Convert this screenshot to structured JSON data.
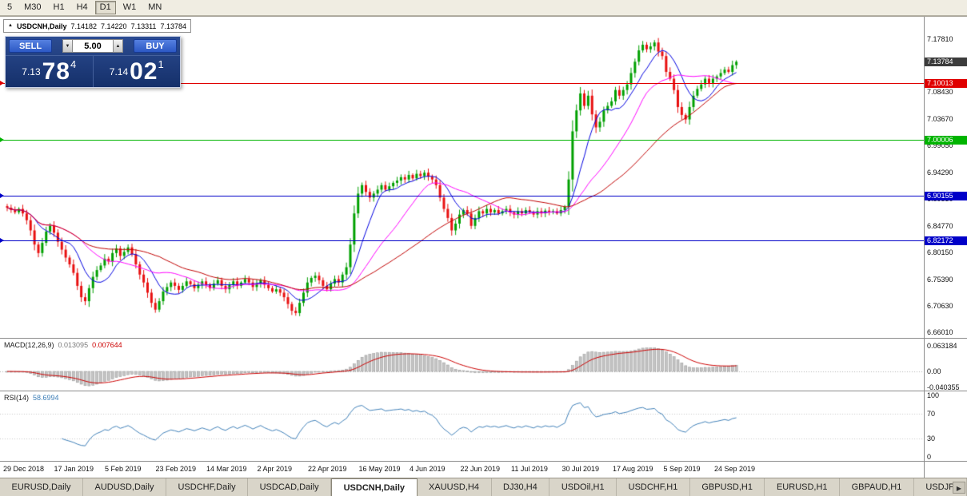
{
  "toolbar": {
    "timeframes": [
      "5",
      "M30",
      "H1",
      "H4",
      "D1",
      "W1",
      "MN"
    ],
    "active": "D1"
  },
  "icons": {
    "title_arrow": "▲",
    "spinner_up": "▲",
    "spinner_down": "▼",
    "tab_scroll_right": "▶"
  },
  "chart": {
    "symbol_period": "USDCNH,Daily",
    "ohlc": {
      "open": "7.14182",
      "high": "7.14220",
      "low": "7.13311",
      "close": "7.13784"
    },
    "trade_panel": {
      "sell_label": "SELL",
      "buy_label": "BUY",
      "volume": "5.00",
      "sell_price": {
        "main": "7.13",
        "big": "78",
        "sup": "4"
      },
      "buy_price": {
        "main": "7.14",
        "big": "02",
        "sup": "1"
      }
    },
    "price_axis": {
      "labels": [
        "7.17810",
        "7.08430",
        "7.03670",
        "6.99050",
        "6.94290",
        "6.89530",
        "6.84770",
        "6.80150",
        "6.75390",
        "6.70630",
        "6.66010"
      ],
      "tags": [
        {
          "text": "7.13784",
          "color": "#3c3c3c"
        },
        {
          "text": "7.10013",
          "color": "#e00000"
        },
        {
          "text": "7.00006",
          "color": "#00b400"
        },
        {
          "text": "6.90155",
          "color": "#0000c8"
        },
        {
          "text": "6.82172",
          "color": "#0000c8"
        }
      ]
    },
    "hlines": [
      {
        "price": 7.10013,
        "color": "#e00000"
      },
      {
        "price": 7.00006,
        "color": "#00b400"
      },
      {
        "price": 6.90155,
        "color": "#0000c8"
      },
      {
        "price": 6.82172,
        "color": "#0000c8"
      }
    ],
    "dates": [
      "29 Dec 2018",
      "17 Jan 2019",
      "5 Feb 2019",
      "23 Feb 2019",
      "14 Mar 2019",
      "2 Apr 2019",
      "22 Apr 2019",
      "16 May 2019",
      "4 Jun 2019",
      "22 Jun 2019",
      "11 Jul 2019",
      "30 Jul 2019",
      "17 Aug 2019",
      "5 Sep 2019",
      "24 Sep 2019"
    ]
  },
  "indicators": {
    "macd": {
      "label": "MACD(12,26,9)",
      "value_main": "0.013095",
      "value_signal": "0.007644",
      "axis": [
        "0.063184",
        "0.00",
        "-0.040355"
      ]
    },
    "rsi": {
      "label": "RSI(14)",
      "value": "58.6994",
      "axis": [
        "100",
        "70",
        "30",
        "0"
      ]
    }
  },
  "tabs": {
    "items": [
      "EURUSD,Daily",
      "AUDUSD,Daily",
      "USDCHF,Daily",
      "USDCAD,Daily",
      "USDCNH,Daily",
      "XAUUSD,H4",
      "DJ30,H4",
      "USDOil,H1",
      "USDCHF,H1",
      "GBPUSD,H1",
      "EURUSD,H1",
      "GBPAUD,H1",
      "USDJP"
    ],
    "active": "USDCNH,Daily"
  },
  "chart_data": {
    "type": "candlestick",
    "symbol": "USDCNH",
    "period": "Daily",
    "title": "USDCNH,Daily",
    "x_labels": [
      "29 Dec 2018",
      "17 Jan 2019",
      "5 Feb 2019",
      "23 Feb 2019",
      "14 Mar 2019",
      "2 Apr 2019",
      "22 Apr 2019",
      "16 May 2019",
      "4 Jun 2019",
      "22 Jun 2019",
      "11 Jul 2019",
      "30 Jul 2019",
      "17 Aug 2019",
      "5 Sep 2019",
      "24 Sep 2019"
    ],
    "closes": [
      6.88,
      6.876,
      6.872,
      6.878,
      6.87,
      6.858,
      6.84,
      6.815,
      6.8,
      6.818,
      6.838,
      6.848,
      6.836,
      6.82,
      6.806,
      6.792,
      6.78,
      6.765,
      6.742,
      6.722,
      6.715,
      6.738,
      6.758,
      6.77,
      6.778,
      6.79,
      6.785,
      6.8,
      6.808,
      6.795,
      6.802,
      6.81,
      6.798,
      6.78,
      6.762,
      6.748,
      6.73,
      6.712,
      6.7,
      6.715,
      6.732,
      6.74,
      6.748,
      6.742,
      6.735,
      6.742,
      6.75,
      6.745,
      6.738,
      6.744,
      6.75,
      6.744,
      6.738,
      6.746,
      6.752,
      6.742,
      6.736,
      6.744,
      6.75,
      6.742,
      6.748,
      6.754,
      6.748,
      6.74,
      6.746,
      6.752,
      6.744,
      6.738,
      6.732,
      6.736,
      6.73,
      6.722,
      6.71,
      6.698,
      6.694,
      6.712,
      6.73,
      6.748,
      6.756,
      6.76,
      6.752,
      6.742,
      6.736,
      6.746,
      6.754,
      6.748,
      6.762,
      6.775,
      6.815,
      6.87,
      6.905,
      6.92,
      6.908,
      6.898,
      6.905,
      6.912,
      6.92,
      6.912,
      6.918,
      6.924,
      6.928,
      6.934,
      6.93,
      6.938,
      6.932,
      6.94,
      6.936,
      6.942,
      6.935,
      6.93,
      6.92,
      6.898,
      6.878,
      6.862,
      6.84,
      6.852,
      6.868,
      6.876,
      6.87,
      6.848,
      6.862,
      6.874,
      6.87,
      6.878,
      6.872,
      6.876,
      6.87,
      6.874,
      6.878,
      6.872,
      6.868,
      6.874,
      6.87,
      6.876,
      6.872,
      6.868,
      6.874,
      6.87,
      6.875,
      6.872,
      6.874,
      6.87,
      6.876,
      6.882,
      6.93,
      7.015,
      7.052,
      7.082,
      7.06,
      7.078,
      7.045,
      7.022,
      7.032,
      7.052,
      7.06,
      7.068,
      7.088,
      7.078,
      7.088,
      7.098,
      7.118,
      7.138,
      7.158,
      7.168,
      7.16,
      7.165,
      7.172,
      7.156,
      7.148,
      7.12,
      7.108,
      7.088,
      7.058,
      7.044,
      7.036,
      7.058,
      7.078,
      7.09,
      7.098,
      7.108,
      7.1,
      7.108,
      7.112,
      7.118,
      7.124,
      7.12,
      7.132,
      7.138
    ],
    "price_range": {
      "top": 7.2174,
      "bottom": 6.6502
    },
    "current_price": 7.13784,
    "horizontal_levels": [
      7.10013,
      7.00006,
      6.90155,
      6.82172
    ],
    "moving_averages": [
      {
        "period": 8,
        "color": "#0000e0"
      },
      {
        "period": 20,
        "color": "#ff00ff"
      },
      {
        "period": 40,
        "color": "#c00000"
      }
    ],
    "colors": {
      "up": "#00a000",
      "down": "#e81010",
      "macd_hist": "#c4c4c4",
      "macd_hist_border": "#8f8f8f",
      "macd_signal": "#cc0000",
      "rsi": "#4080b8"
    },
    "macd": {
      "fast": 12,
      "slow": 26,
      "signal": 9,
      "scale_top": 0.063184,
      "scale_bottom": -0.040355
    },
    "rsi": {
      "period": 14,
      "levels": [
        70,
        30
      ],
      "range": [
        0,
        100
      ]
    }
  }
}
